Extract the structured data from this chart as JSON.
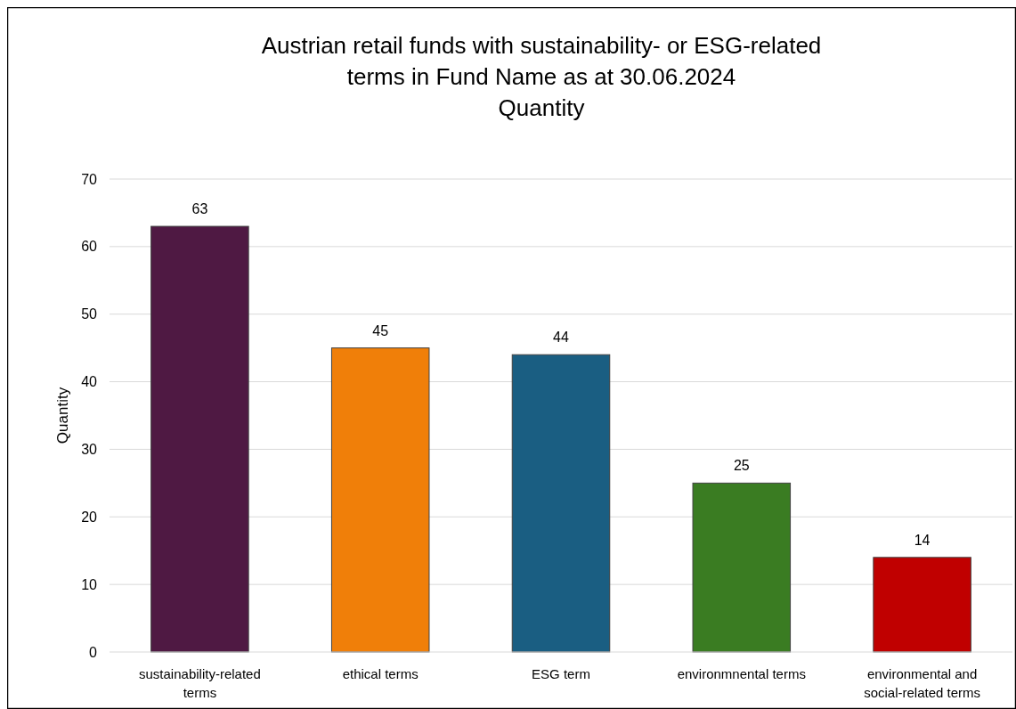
{
  "chart_data": {
    "type": "bar",
    "title": "Austrian retail funds with sustainability- or ESG-related terms in Fund Name as at 30.06.2024",
    "subtitle": "Quantity",
    "ylabel": "Quantity",
    "categories": [
      "sustainability-related terms",
      "ethical terms",
      "ESG term",
      "environmnental terms",
      "environmental and social-related terms"
    ],
    "values": [
      63,
      45,
      44,
      25,
      14
    ],
    "colors": [
      "#4f1943",
      "#f07f09",
      "#1a5e82",
      "#3a7c22",
      "#c00000"
    ],
    "ylim": [
      0,
      70
    ],
    "yticks": [
      0,
      10,
      20,
      30,
      40,
      50,
      60,
      70
    ],
    "grid": "y",
    "data_labels": true
  }
}
